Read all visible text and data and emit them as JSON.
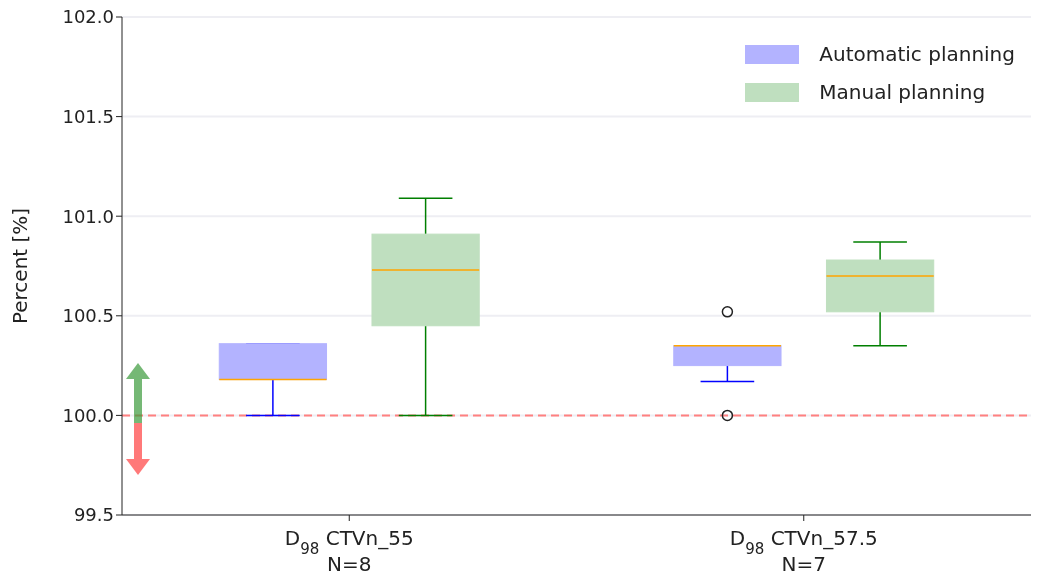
{
  "chart_data": {
    "type": "box",
    "ylabel": "Percent [%]",
    "categories": [
      "D$_{98}$ CTVn_55\nN=8",
      "D$_{98}$ CTVn_57.5\nN=7"
    ],
    "series": [
      {
        "name": "Automatic planning",
        "color": "#b3b3ff",
        "boxes": [
          {
            "low": 100.0,
            "q1": 100.18,
            "median": 100.18,
            "q3": 100.36,
            "high": 100.36
          },
          {
            "low": 100.17,
            "q1": 100.25,
            "median": 100.35,
            "q3": 100.35,
            "high": 100.35,
            "outliers": [
              100.52,
              100.0
            ]
          }
        ]
      },
      {
        "name": "Manual planning",
        "color": "#bfdfbf",
        "boxes": [
          {
            "low": 100.0,
            "q1": 100.45,
            "median": 100.73,
            "q3": 100.91,
            "high": 101.09
          },
          {
            "low": 100.35,
            "q1": 100.52,
            "median": 100.7,
            "q3": 100.78,
            "high": 100.87
          }
        ]
      }
    ],
    "ylim": [
      99.5,
      102.0
    ],
    "yticks": [
      {
        "value": 99.5,
        "label": "99.5"
      },
      {
        "value": 100.0,
        "label": "100.0"
      },
      {
        "value": 100.5,
        "label": "100.5"
      },
      {
        "value": 101.0,
        "label": "101.0"
      },
      {
        "value": 101.5,
        "label": "101.5"
      },
      {
        "value": 102.0,
        "label": "102.0"
      }
    ],
    "ref_lines": [
      {
        "axis": "y",
        "value": 100.0,
        "color": "#ff8080",
        "line_style": "dashed"
      }
    ],
    "grid": "y",
    "legend": "top right"
  }
}
